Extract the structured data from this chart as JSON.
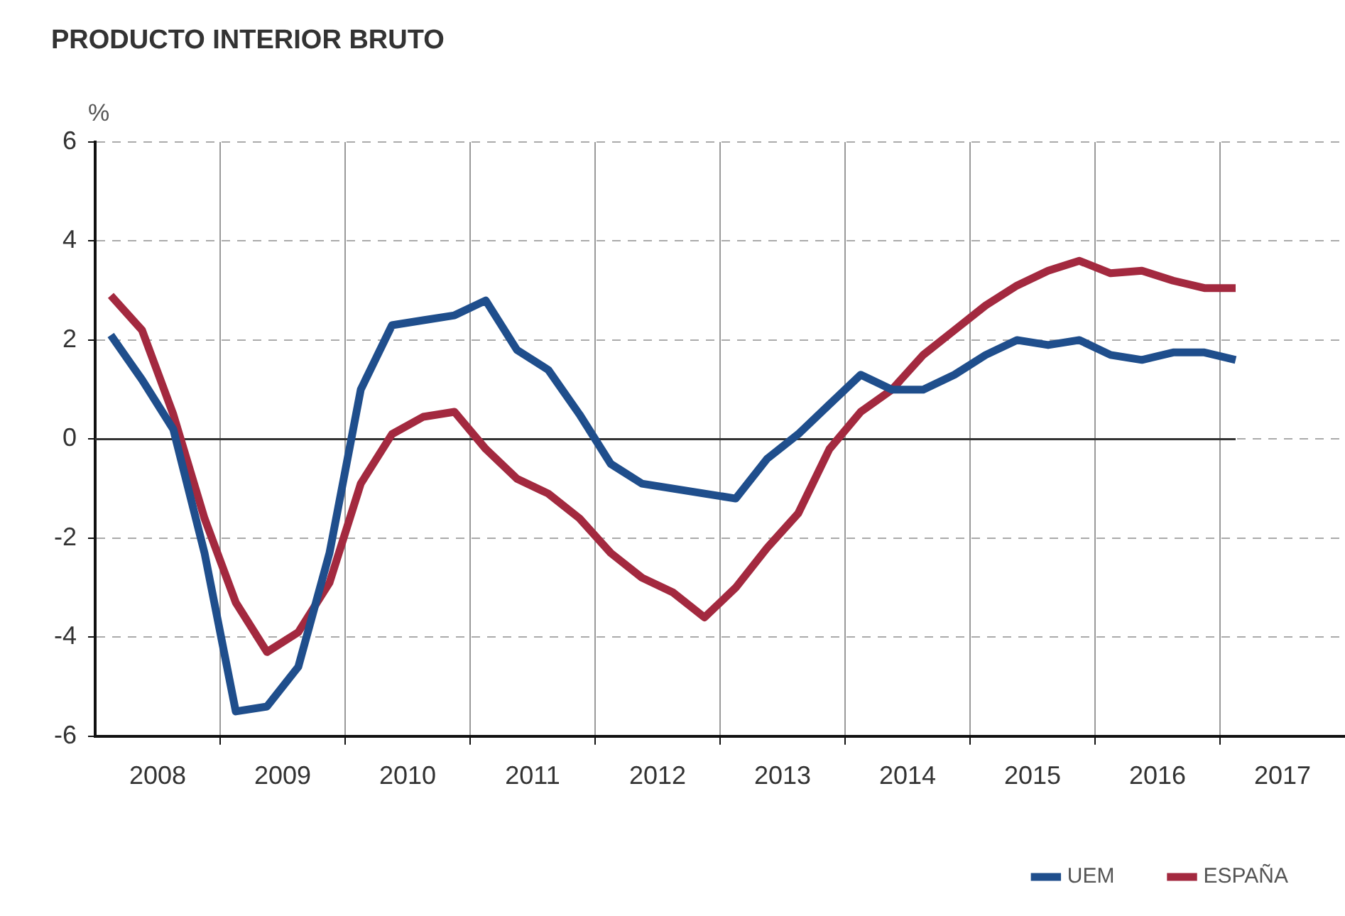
{
  "chart_data": {
    "type": "line",
    "title": "PRODUCTO INTERIOR BRUTO",
    "ylabel": "%",
    "x": [
      2008.125,
      2008.375,
      2008.625,
      2008.875,
      2009.125,
      2009.375,
      2009.625,
      2009.875,
      2010.125,
      2010.375,
      2010.625,
      2010.875,
      2011.125,
      2011.375,
      2011.625,
      2011.875,
      2012.125,
      2012.375,
      2012.625,
      2012.875,
      2013.125,
      2013.375,
      2013.625,
      2013.875,
      2014.125,
      2014.375,
      2014.625,
      2014.875,
      2015.125,
      2015.375,
      2015.625,
      2015.875,
      2016.125,
      2016.375,
      2016.625,
      2016.875,
      2017.125
    ],
    "series": [
      {
        "name": "UEM",
        "color": "#1f4e8c",
        "values": [
          2.1,
          1.2,
          0.2,
          -2.3,
          -5.5,
          -5.4,
          -4.6,
          -2.3,
          1.0,
          2.3,
          2.4,
          2.5,
          2.8,
          1.8,
          1.4,
          0.5,
          -0.5,
          -0.9,
          -1.0,
          -1.1,
          -1.2,
          -0.4,
          0.1,
          0.7,
          1.3,
          1.0,
          1.0,
          1.3,
          1.7,
          2.0,
          1.9,
          2.0,
          1.7,
          1.6,
          1.75,
          1.75,
          1.6
        ]
      },
      {
        "name": "ESPAÑA",
        "color": "#a3293f",
        "values": [
          2.9,
          2.2,
          0.5,
          -1.6,
          -3.3,
          -4.3,
          -3.9,
          -2.9,
          -0.9,
          0.1,
          0.45,
          0.55,
          -0.2,
          -0.8,
          -1.1,
          -1.6,
          -2.3,
          -2.8,
          -3.1,
          -3.6,
          -3.0,
          -2.2,
          -1.5,
          -0.2,
          0.55,
          1.0,
          1.7,
          2.2,
          2.7,
          3.1,
          3.4,
          3.6,
          3.35,
          3.4,
          3.2,
          3.05,
          3.05
        ]
      }
    ],
    "xlim": [
      2008,
      2018
    ],
    "xticks": [
      {
        "value": 2008.5,
        "label": "2008"
      },
      {
        "value": 2009,
        "label": null
      },
      {
        "value": 2009.5,
        "label": "2009"
      },
      {
        "value": 2010,
        "label": null
      },
      {
        "value": 2010.5,
        "label": "2010"
      },
      {
        "value": 2011,
        "label": null
      },
      {
        "value": 2011.5,
        "label": "2011"
      },
      {
        "value": 2012,
        "label": null
      },
      {
        "value": 2012.5,
        "label": "2012"
      },
      {
        "value": 2013,
        "label": null
      },
      {
        "value": 2013.5,
        "label": "2013"
      },
      {
        "value": 2014,
        "label": null
      },
      {
        "value": 2014.5,
        "label": "2014"
      },
      {
        "value": 2015,
        "label": null
      },
      {
        "value": 2015.5,
        "label": "2015"
      },
      {
        "value": 2016,
        "label": null
      },
      {
        "value": 2016.5,
        "label": "2016"
      },
      {
        "value": 2017,
        "label": null
      },
      {
        "value": 2017.5,
        "label": "2017"
      }
    ],
    "ylim": [
      -6,
      6
    ],
    "yticks": [
      -6,
      -4,
      -2,
      0,
      2,
      4,
      6
    ],
    "ref_lines": [
      {
        "axis": "y",
        "value": 0,
        "color": "#333333"
      }
    ],
    "grid": true,
    "legend": "bottom right",
    "marker": "none",
    "line_style": "solid"
  }
}
